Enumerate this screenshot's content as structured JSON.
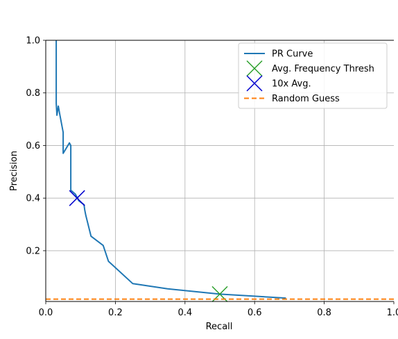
{
  "chart_data": {
    "type": "line",
    "xlabel": "Recall",
    "ylabel": "Precision",
    "xlim": [
      0.0,
      1.0
    ],
    "ylim": [
      0.007,
      1.0
    ],
    "x_ticks": [
      "0.0",
      "0.2",
      "0.4",
      "0.6",
      "0.8",
      "1.0"
    ],
    "y_ticks": [
      "0.2",
      "0.4",
      "0.6",
      "0.8",
      "1.0"
    ],
    "grid": true,
    "legend_position": "top-right",
    "series": [
      {
        "name": "PR Curve",
        "kind": "line",
        "color": "#1f77b4",
        "x": [
          0.03,
          0.03,
          0.032,
          0.036,
          0.04,
          0.05,
          0.05,
          0.068,
          0.072,
          0.072,
          0.085,
          0.095,
          0.11,
          0.112,
          0.115,
          0.13,
          0.165,
          0.18,
          0.25,
          0.35,
          0.5,
          0.69
        ],
        "y": [
          1.0,
          0.76,
          0.715,
          0.75,
          0.72,
          0.65,
          0.57,
          0.61,
          0.6,
          0.43,
          0.415,
          0.39,
          0.375,
          0.355,
          0.335,
          0.255,
          0.22,
          0.16,
          0.075,
          0.055,
          0.035,
          0.02
        ]
      },
      {
        "name": "Avg. Frequency Thresh",
        "kind": "marker",
        "marker": "x",
        "color": "#2ca02c",
        "x": [
          0.5
        ],
        "y": [
          0.035
        ]
      },
      {
        "name": "10x Avg.",
        "kind": "marker",
        "marker": "x",
        "color": "#0000cd",
        "x": [
          0.09
        ],
        "y": [
          0.4
        ]
      },
      {
        "name": "Random Guess",
        "kind": "hline",
        "dashed": true,
        "color": "#ff7f0e",
        "y": 0.016
      }
    ]
  }
}
